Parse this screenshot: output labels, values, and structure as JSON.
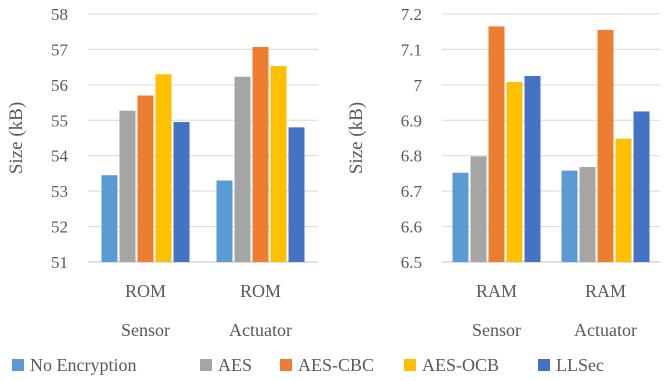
{
  "chart_data": [
    {
      "type": "bar",
      "ylabel": "Size (kB)",
      "ylim": [
        51,
        58
      ],
      "yticks": [
        "51",
        "52",
        "53",
        "54",
        "55",
        "56",
        "57",
        "58"
      ],
      "categories": [
        "ROM",
        "ROM"
      ],
      "subcategories": [
        "Sensor",
        "Actuator"
      ],
      "grid": true,
      "series": [
        {
          "name": "No Encryption",
          "color": "#5B9BD5",
          "values": [
            53.45,
            53.3
          ]
        },
        {
          "name": "AES",
          "color": "#A5A5A5",
          "values": [
            55.27,
            56.23
          ]
        },
        {
          "name": "AES-CBC",
          "color": "#ED7D31",
          "values": [
            55.7,
            57.07
          ]
        },
        {
          "name": "AES-OCB",
          "color": "#FFC000",
          "values": [
            56.3,
            56.53
          ]
        },
        {
          "name": "LLSec",
          "color": "#4472C4",
          "values": [
            54.95,
            54.8
          ]
        }
      ]
    },
    {
      "type": "bar",
      "ylabel": "Size (kB)",
      "ylim": [
        6.5,
        7.2
      ],
      "yticks": [
        "6.5",
        "6.6",
        "6.7",
        "6.8",
        "6.9",
        "7",
        "7.1",
        "7.2"
      ],
      "categories": [
        "RAM",
        "RAM"
      ],
      "subcategories": [
        "Sensor",
        "Actuator"
      ],
      "grid": true,
      "series": [
        {
          "name": "No Encryption",
          "color": "#5B9BD5",
          "values": [
            6.752,
            6.758
          ]
        },
        {
          "name": "AES",
          "color": "#A5A5A5",
          "values": [
            6.798,
            6.768
          ]
        },
        {
          "name": "AES-CBC",
          "color": "#ED7D31",
          "values": [
            7.165,
            7.155
          ]
        },
        {
          "name": "AES-OCB",
          "color": "#FFC000",
          "values": [
            7.008,
            6.848
          ]
        },
        {
          "name": "LLSec",
          "color": "#4472C4",
          "values": [
            7.025,
            6.925
          ]
        }
      ]
    }
  ],
  "legend": {
    "placement": "bottom",
    "items": [
      "No Encryption",
      "AES",
      "AES-CBC",
      "AES-OCB",
      "LLSec"
    ]
  }
}
